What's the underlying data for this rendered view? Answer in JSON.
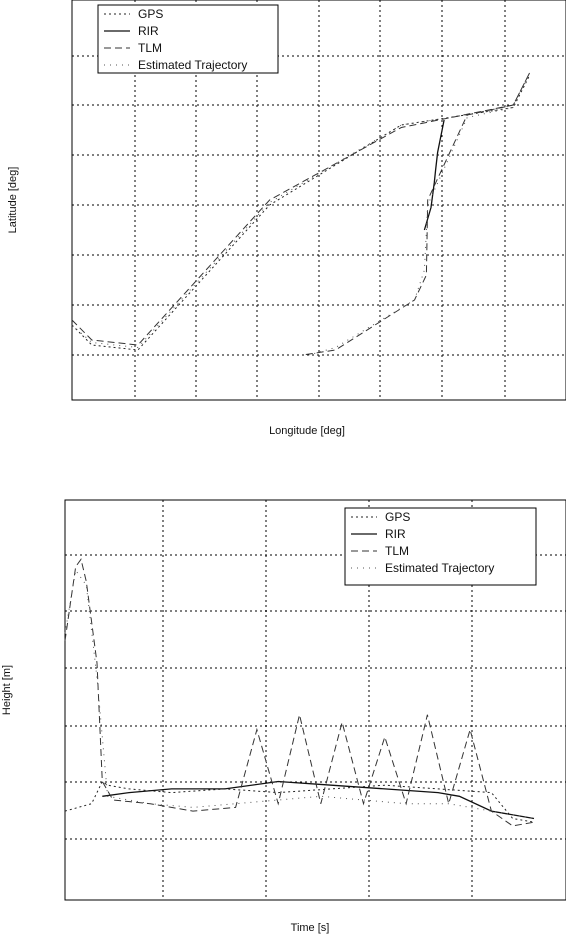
{
  "chart_data": [
    {
      "type": "line",
      "title": "",
      "xlabel": "Longitude [deg]",
      "ylabel": "Latitude [deg]",
      "xlim": [
        0,
        7.5
      ],
      "ylim": [
        0,
        8
      ],
      "grid": true,
      "legend_position": "top-left",
      "series": [
        {
          "name": "GPS",
          "style": "dotted",
          "x": [
            0.0,
            0.3,
            1.0,
            3.0,
            5.0,
            6.7,
            6.95
          ],
          "y": [
            1.5,
            1.1,
            1.0,
            3.9,
            5.5,
            5.85,
            6.5
          ]
        },
        {
          "name": "RIR",
          "style": "solid",
          "x": [
            5.35,
            5.45,
            5.5,
            5.52,
            5.55,
            5.65
          ],
          "y": [
            3.4,
            3.85,
            4.35,
            4.6,
            4.95,
            5.6
          ]
        },
        {
          "name": "TLM",
          "style": "dashed",
          "x": [
            0.0,
            0.3,
            1.0,
            3.0,
            5.0,
            6.7,
            6.95,
            6.7,
            6.0,
            5.4,
            5.38,
            5.2,
            4.0,
            3.5
          ],
          "y": [
            1.6,
            1.2,
            1.1,
            4.0,
            5.45,
            5.9,
            6.55,
            5.9,
            5.7,
            4.0,
            2.5,
            2.0,
            1.0,
            0.9
          ]
        },
        {
          "name": "Estimated Trajectory",
          "style": "dotted-sparse",
          "x": [
            0.0,
            0.3,
            1.0,
            3.0,
            5.0,
            6.7,
            6.0,
            5.4,
            5.35,
            5.2,
            4.0,
            3.6
          ],
          "y": [
            1.5,
            1.15,
            1.05,
            3.95,
            5.5,
            5.85,
            5.65,
            3.9,
            2.6,
            2.0,
            1.05,
            0.9
          ]
        }
      ]
    },
    {
      "type": "line",
      "title": "",
      "xlabel": "Time [s]",
      "ylabel": "Height [m]",
      "xlim": [
        0,
        4.7
      ],
      "ylim": [
        0,
        5.4
      ],
      "grid": true,
      "legend_position": "top-right",
      "series": [
        {
          "name": "GPS",
          "style": "dotted",
          "x": [
            0.0,
            0.25,
            0.35,
            0.4,
            0.6,
            1.0,
            1.5,
            2.0,
            2.5,
            3.0,
            3.5,
            4.0,
            4.2,
            4.4
          ],
          "y": [
            1.2,
            1.3,
            1.6,
            1.55,
            1.5,
            1.45,
            1.5,
            1.45,
            1.5,
            1.55,
            1.5,
            1.45,
            1.1,
            1.05
          ]
        },
        {
          "name": "RIR",
          "style": "solid",
          "x": [
            0.35,
            0.6,
            1.0,
            1.5,
            2.0,
            2.5,
            3.0,
            3.5,
            3.7,
            4.0,
            4.4
          ],
          "y": [
            1.4,
            1.45,
            1.5,
            1.5,
            1.6,
            1.55,
            1.5,
            1.45,
            1.4,
            1.2,
            1.1
          ]
        },
        {
          "name": "TLM",
          "style": "dashed",
          "x": [
            0.0,
            0.1,
            0.15,
            0.2,
            0.3,
            0.35,
            0.45,
            0.8,
            1.2,
            1.6,
            1.8,
            2.0,
            2.2,
            2.4,
            2.6,
            2.8,
            3.0,
            3.2,
            3.4,
            3.6,
            3.8,
            4.0,
            4.2,
            4.4
          ],
          "y": [
            3.5,
            4.5,
            4.6,
            4.3,
            3.2,
            1.6,
            1.35,
            1.3,
            1.2,
            1.25,
            2.3,
            1.3,
            2.5,
            1.3,
            2.4,
            1.3,
            2.2,
            1.3,
            2.5,
            1.3,
            2.3,
            1.2,
            1.0,
            1.05
          ]
        },
        {
          "name": "Estimated Trajectory",
          "style": "dotted-sparse",
          "x": [
            0.0,
            0.1,
            0.2,
            0.3,
            0.4,
            0.8,
            1.2,
            1.6,
            2.0,
            2.4,
            2.8,
            3.2,
            3.6,
            4.0,
            4.4
          ],
          "y": [
            3.6,
            4.45,
            4.25,
            3.0,
            1.4,
            1.3,
            1.25,
            1.3,
            1.35,
            1.4,
            1.35,
            1.3,
            1.3,
            1.2,
            1.1
          ]
        }
      ]
    }
  ]
}
